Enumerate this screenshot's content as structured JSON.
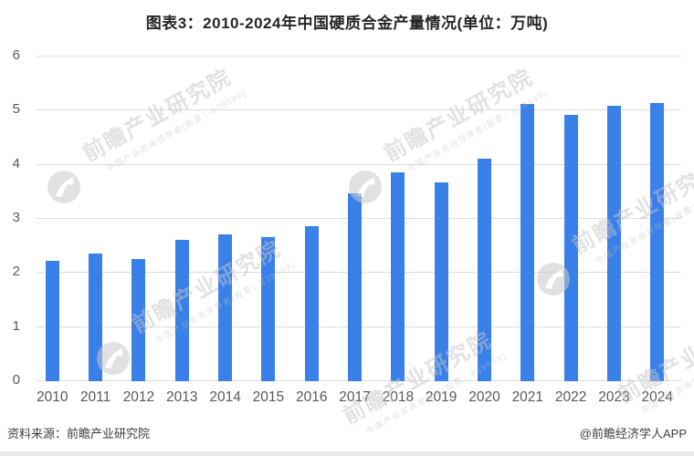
{
  "title": "图表3：2010-2024年中国硬质合金产量情况(单位：万吨)",
  "footer": {
    "source": "资料来源：前瞻产业研究院",
    "credit": "@前瞻经济学人APP"
  },
  "watermark": {
    "logo": "qianzhan-circle-logo",
    "text_large": "前瞻产业研究院",
    "text_small": "中国产业咨询领导者(股票：839599)"
  },
  "colors": {
    "bar": "#3a80e9",
    "grid": "#dcdcdc",
    "axis_text": "#595959",
    "title_text": "#262626",
    "footer_text": "#3d3d3d",
    "watermark": "#c5c5c5"
  },
  "chart_data": {
    "type": "bar",
    "title": "图表3：2010-2024年中国硬质合金产量情况(单位：万吨)",
    "unit": "万吨",
    "categories": [
      "2010",
      "2011",
      "2012",
      "2013",
      "2014",
      "2015",
      "2016",
      "2017",
      "2018",
      "2019",
      "2020",
      "2021",
      "2022",
      "2023",
      "2024"
    ],
    "values": [
      2.2,
      2.35,
      2.25,
      2.6,
      2.7,
      2.65,
      2.85,
      3.45,
      3.85,
      3.65,
      4.1,
      5.1,
      4.9,
      5.07,
      5.12
    ],
    "xlabel": "",
    "ylabel": "",
    "ylim": [
      0,
      6
    ],
    "yticks": [
      0,
      1,
      2,
      3,
      4,
      5,
      6
    ],
    "grid": true,
    "legend": false
  }
}
